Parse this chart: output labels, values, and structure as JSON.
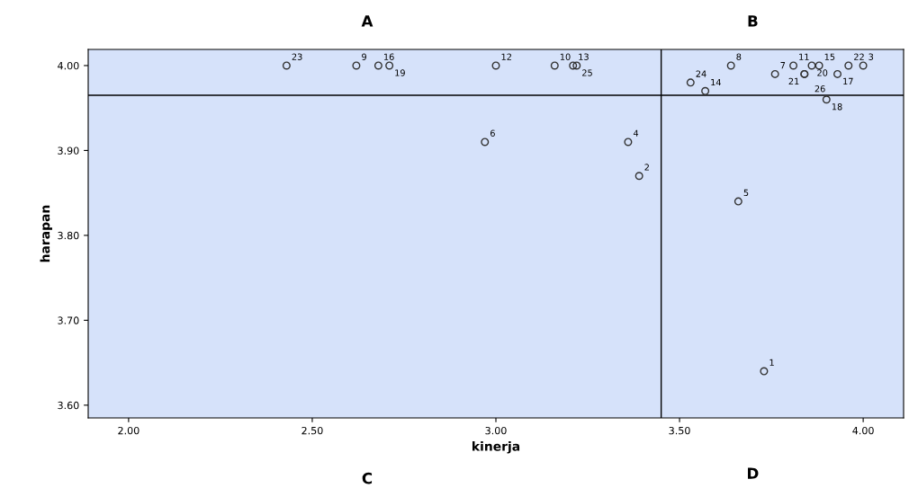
{
  "chart_data": {
    "type": "scatter",
    "xlabel": "kinerja",
    "ylabel": "harapan",
    "marker": "circle",
    "grid": false,
    "legend": false,
    "annotations": [
      "A",
      "B",
      "C",
      "D",
      {
        "text": "1",
        "x": 3.73,
        "y": 3.64
      },
      {
        "text": "2",
        "x": 3.39,
        "y": 3.87
      },
      {
        "text": "3",
        "x": 4.0,
        "y": 4.0
      },
      {
        "text": "4",
        "x": 3.36,
        "y": 3.91
      },
      {
        "text": "5",
        "x": 3.66,
        "y": 3.84
      },
      {
        "text": "6",
        "x": 2.97,
        "y": 3.91
      },
      {
        "text": "7",
        "x": 3.76,
        "y": 3.99
      },
      {
        "text": "8",
        "x": 3.64,
        "y": 4.0
      },
      {
        "text": "9",
        "x": 2.62,
        "y": 4.0
      },
      {
        "text": "10",
        "x": 3.16,
        "y": 4.0
      },
      {
        "text": "11",
        "x": 3.81,
        "y": 4.0
      },
      {
        "text": "12",
        "x": 3.0,
        "y": 4.0
      },
      {
        "text": "13",
        "x": 3.21,
        "y": 4.0
      },
      {
        "text": "14",
        "x": 3.57,
        "y": 3.97
      },
      {
        "text": "15",
        "x": 3.88,
        "y": 4.0
      },
      {
        "text": "16",
        "x": 2.68,
        "y": 4.0
      },
      {
        "text": "17",
        "x": 3.93,
        "y": 3.99
      },
      {
        "text": "18",
        "x": 3.9,
        "y": 3.96
      },
      {
        "text": "19",
        "x": 2.71,
        "y": 4.0
      },
      {
        "text": "20",
        "x": 3.86,
        "y": 4.0
      },
      {
        "text": "21",
        "x": 3.84,
        "y": 3.99
      },
      {
        "text": "22",
        "x": 3.96,
        "y": 4.0
      },
      {
        "text": "23",
        "x": 2.43,
        "y": 4.0
      },
      {
        "text": "24",
        "x": 3.53,
        "y": 3.98
      },
      {
        "text": "25",
        "x": 3.22,
        "y": 4.0
      },
      {
        "text": "26",
        "x": 3.84,
        "y": 3.99
      }
    ],
    "xlim": [
      1.89,
      4.11
    ],
    "ylim": [
      3.585,
      4.019
    ],
    "xticks": [
      {
        "value": 2,
        "label": "2.00"
      },
      {
        "value": 2.5,
        "label": "2.50"
      },
      {
        "value": 3,
        "label": "3.00"
      },
      {
        "value": 3.5,
        "label": "3.50"
      },
      {
        "value": 4,
        "label": "4.00"
      }
    ],
    "yticks": [
      {
        "value": 3.6,
        "label": "3.60"
      },
      {
        "value": 3.7,
        "label": "3.70"
      },
      {
        "value": 3.8,
        "label": "3.80"
      },
      {
        "value": 3.9,
        "label": "3.90"
      },
      {
        "value": 4,
        "label": "4.00"
      }
    ],
    "ref_lines": [
      {
        "axis": "x",
        "value": 3.45,
        "color": "#000000"
      },
      {
        "axis": "y",
        "value": 3.965,
        "color": "#000000"
      }
    ],
    "series": [
      {
        "color": "#333333",
        "x": [
          3.73,
          3.39,
          4.0,
          3.36,
          3.66,
          2.97,
          3.76,
          3.64,
          2.62,
          3.16,
          3.81,
          3.0,
          3.21,
          3.57,
          3.88,
          2.68,
          3.93,
          3.9,
          2.71,
          3.86,
          3.84,
          3.96,
          2.43,
          3.53,
          3.22,
          3.84
        ],
        "values": [
          3.64,
          3.87,
          4.0,
          3.91,
          3.84,
          3.91,
          3.99,
          4.0,
          4.0,
          4.0,
          4.0,
          4.0,
          4.0,
          3.97,
          4.0,
          4.0,
          3.99,
          3.96,
          4.0,
          4.0,
          3.99,
          4.0,
          4.0,
          3.98,
          4.0,
          3.99
        ]
      }
    ]
  }
}
